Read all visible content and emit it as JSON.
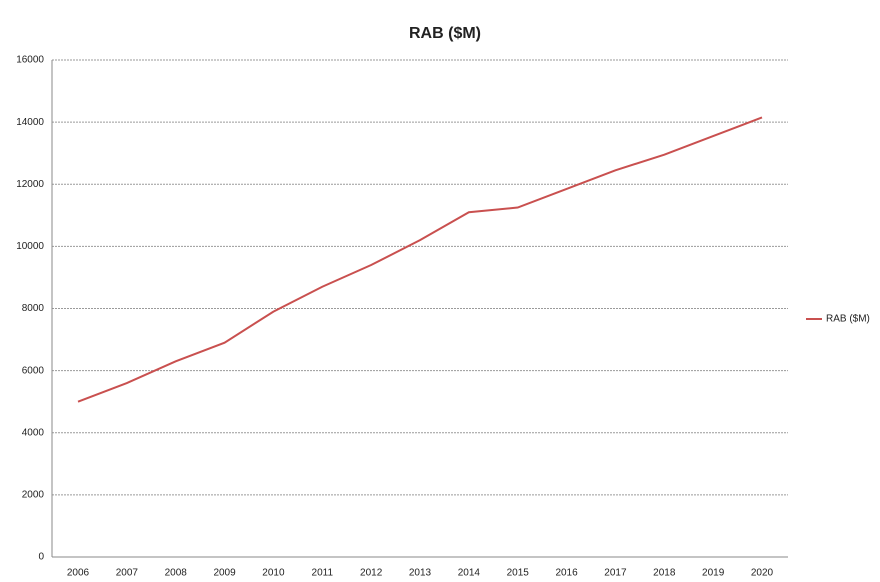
{
  "chart_data": {
    "type": "line",
    "title": "RAB ($M)",
    "x": [
      2006,
      2007,
      2008,
      2009,
      2010,
      2011,
      2012,
      2013,
      2014,
      2015,
      2016,
      2017,
      2018,
      2019,
      2020
    ],
    "series": [
      {
        "name": "RAB ($M)",
        "color": "#c9504f",
        "values": [
          5000,
          5600,
          6300,
          6900,
          7900,
          8700,
          9400,
          10200,
          11100,
          11250,
          11850,
          12450,
          12950,
          13550,
          14150
        ]
      }
    ],
    "ylim": [
      0,
      16000
    ],
    "yticks": [
      0,
      2000,
      4000,
      6000,
      8000,
      10000,
      12000,
      14000,
      16000
    ],
    "grid": true,
    "legend": "right"
  }
}
